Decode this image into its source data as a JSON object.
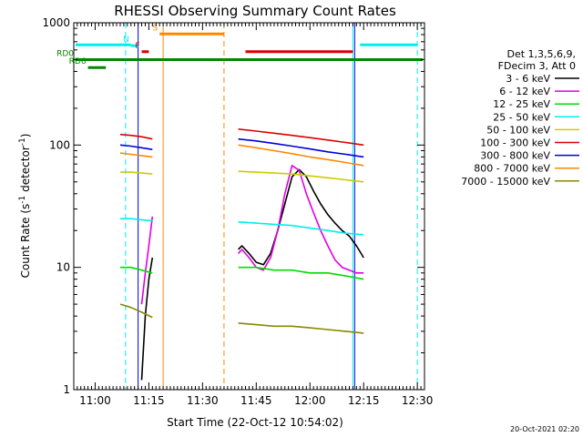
{
  "chart_data": {
    "type": "line",
    "title": "RHESSI Observing Summary Count Rates",
    "xlabel": "Start Time (22-Oct-12 10:54:02)",
    "ylabel_parts": [
      "Count Rate (s",
      "-1",
      " detector",
      "-1",
      ")"
    ],
    "y_scale": "log",
    "ylim": [
      1,
      1000
    ],
    "y_ticks": [
      {
        "value": 1,
        "label": "1"
      },
      {
        "value": 10,
        "label": "10"
      },
      {
        "value": 100,
        "label": "100"
      },
      {
        "value": 1000,
        "label": "1000"
      }
    ],
    "xlim": [
      "10:54:02",
      "12:32"
    ],
    "x_ticks": [
      "11:00",
      "11:15",
      "11:30",
      "11:45",
      "12:00",
      "12:15",
      "12:30"
    ],
    "legend": {
      "position": "right",
      "header": [
        "Det 1,3,5,6,9,",
        "FDecim 3, Att 0"
      ]
    },
    "series": [
      {
        "name": "3 - 6 keV",
        "color": "#000000",
        "segments": [
          [
            [
              "11:13",
              1.2
            ],
            [
              "11:14",
              4.0
            ],
            [
              "11:15",
              8.0
            ],
            [
              "11:16",
              12.0
            ]
          ],
          [
            [
              "11:40",
              14
            ],
            [
              "11:41",
              15
            ],
            [
              "11:43",
              13
            ],
            [
              "11:45",
              11
            ],
            [
              "11:47",
              10.5
            ],
            [
              "11:49",
              13
            ],
            [
              "11:51",
              20
            ],
            [
              "11:53",
              33
            ],
            [
              "11:55",
              55
            ],
            [
              "11:57",
              63
            ],
            [
              "11:59",
              55
            ],
            [
              "12:01",
              42
            ],
            [
              "12:03",
              33
            ],
            [
              "12:05",
              27
            ],
            [
              "12:07",
              23
            ],
            [
              "12:09",
              20
            ],
            [
              "12:11",
              18
            ],
            [
              "12:13",
              15
            ],
            [
              "12:15",
              12
            ]
          ]
        ]
      },
      {
        "name": "6 - 12 keV",
        "color": "#e000e0",
        "segments": [
          [
            [
              "11:13",
              5.0
            ],
            [
              "11:14",
              9.0
            ],
            [
              "11:15",
              15.0
            ],
            [
              "11:16",
              26.0
            ]
          ],
          [
            [
              "11:40",
              13
            ],
            [
              "11:41",
              14
            ],
            [
              "11:43",
              12
            ],
            [
              "11:45",
              10
            ],
            [
              "11:47",
              9.5
            ],
            [
              "11:49",
              12
            ],
            [
              "11:51",
              20
            ],
            [
              "11:53",
              40
            ],
            [
              "11:55",
              68
            ],
            [
              "11:57",
              62
            ],
            [
              "11:59",
              40
            ],
            [
              "12:01",
              28
            ],
            [
              "12:03",
              20
            ],
            [
              "12:05",
              15
            ],
            [
              "12:07",
              11.5
            ],
            [
              "12:09",
              10
            ],
            [
              "12:11",
              9.5
            ],
            [
              "12:13",
              9
            ],
            [
              "12:15",
              9
            ]
          ]
        ]
      },
      {
        "name": "12 - 25 keV",
        "color": "#00dd00",
        "segments": [
          [
            [
              "11:07",
              10
            ],
            [
              "11:10",
              10
            ],
            [
              "11:13",
              9.5
            ],
            [
              "11:16",
              9
            ]
          ],
          [
            [
              "11:40",
              10
            ],
            [
              "11:45",
              10
            ],
            [
              "11:50",
              9.5
            ],
            [
              "11:55",
              9.5
            ],
            [
              "12:00",
              9
            ],
            [
              "12:05",
              9
            ],
            [
              "12:10",
              8.5
            ],
            [
              "12:15",
              8
            ]
          ]
        ]
      },
      {
        "name": "25 - 50 keV",
        "color": "#00eeee",
        "segments": [
          [
            [
              "11:07",
              25
            ],
            [
              "11:10",
              25
            ],
            [
              "11:13",
              24.5
            ],
            [
              "11:16",
              24
            ]
          ],
          [
            [
              "11:40",
              23.5
            ],
            [
              "11:45",
              23
            ],
            [
              "11:50",
              22.5
            ],
            [
              "11:55",
              22
            ],
            [
              "12:00",
              21
            ],
            [
              "12:05",
              20
            ],
            [
              "12:10",
              19
            ],
            [
              "12:15",
              18.5
            ]
          ]
        ]
      },
      {
        "name": "50 - 100 keV",
        "color": "#cccc00",
        "segments": [
          [
            [
              "11:07",
              60
            ],
            [
              "11:10",
              60
            ],
            [
              "11:13",
              59
            ],
            [
              "11:16",
              58
            ]
          ],
          [
            [
              "11:40",
              61
            ],
            [
              "11:45",
              60
            ],
            [
              "11:50",
              59
            ],
            [
              "11:55",
              58
            ],
            [
              "12:00",
              56
            ],
            [
              "12:05",
              54
            ],
            [
              "12:10",
              52
            ],
            [
              "12:15",
              50
            ]
          ]
        ]
      },
      {
        "name": "100 - 300 keV",
        "color": "#dd0000",
        "segments": [
          [
            [
              "11:07",
              122
            ],
            [
              "11:10",
              120
            ],
            [
              "11:13",
              117
            ],
            [
              "11:16",
              112
            ]
          ],
          [
            [
              "11:40",
              135
            ],
            [
              "11:45",
              130
            ],
            [
              "11:50",
              125
            ],
            [
              "11:55",
              120
            ],
            [
              "12:00",
              115
            ],
            [
              "12:05",
              110
            ],
            [
              "12:10",
              105
            ],
            [
              "12:15",
              100
            ]
          ]
        ]
      },
      {
        "name": "300 - 800 keV",
        "color": "#0000dd",
        "segments": [
          [
            [
              "11:07",
              100
            ],
            [
              "11:10",
              98
            ],
            [
              "11:13",
              95
            ],
            [
              "11:16",
              92
            ]
          ],
          [
            [
              "11:40",
              112
            ],
            [
              "11:45",
              108
            ],
            [
              "11:50",
              103
            ],
            [
              "11:55",
              98
            ],
            [
              "12:00",
              93
            ],
            [
              "12:05",
              88
            ],
            [
              "12:10",
              84
            ],
            [
              "12:15",
              80
            ]
          ]
        ]
      },
      {
        "name": "800 - 7000 keV",
        "color": "#ff8800",
        "segments": [
          [
            [
              "11:07",
              86
            ],
            [
              "11:10",
              84
            ],
            [
              "11:13",
              82
            ],
            [
              "11:16",
              80
            ]
          ],
          [
            [
              "11:40",
              100
            ],
            [
              "11:45",
              95
            ],
            [
              "11:50",
              90
            ],
            [
              "11:55",
              85
            ],
            [
              "12:00",
              80
            ],
            [
              "12:05",
              76
            ],
            [
              "12:10",
              72
            ],
            [
              "12:15",
              68
            ]
          ]
        ]
      },
      {
        "name": "7000 - 15000 keV",
        "color": "#888800",
        "segments": [
          [
            [
              "11:07",
              5
            ],
            [
              "11:10",
              4.7
            ],
            [
              "11:13",
              4.3
            ],
            [
              "11:16",
              3.9
            ]
          ],
          [
            [
              "11:40",
              3.5
            ],
            [
              "11:45",
              3.4
            ],
            [
              "11:50",
              3.3
            ],
            [
              "11:55",
              3.3
            ],
            [
              "12:00",
              3.2
            ],
            [
              "12:05",
              3.1
            ],
            [
              "12:10",
              3.0
            ],
            [
              "12:15",
              2.9
            ]
          ]
        ]
      }
    ],
    "flag_bars": [
      {
        "label": "",
        "color": "#00eeee",
        "start": "10:54:02",
        "end": "11:10",
        "level": 660
      },
      {
        "label": "N",
        "color": "#00eeee",
        "start": "11:10",
        "end": "11:12",
        "level": 650
      },
      {
        "label": "",
        "color": "#00eeee",
        "start": "12:14",
        "end": "12:30",
        "level": 660
      },
      {
        "label": "F",
        "color": "#dd0000",
        "start": "11:13",
        "end": "11:15",
        "level": 580
      },
      {
        "label": "S",
        "color": "#ff8800",
        "start": "11:18",
        "end": "11:36",
        "level": 810
      },
      {
        "label": "",
        "color": "#dd0000",
        "start": "11:42",
        "end": "12:12",
        "level": 580
      },
      {
        "label": "RD0",
        "color": "#008800",
        "start": "10:54:02",
        "end": "12:32",
        "level": 500
      },
      {
        "label": "RD6",
        "color": "#008800",
        "start": "10:58",
        "end": "11:03",
        "level": 430
      }
    ],
    "vertical_lines": [
      {
        "time": "11:08:30",
        "color": "#00eeee",
        "style": "dashed"
      },
      {
        "time": "11:12",
        "color": "#0000dd",
        "style": "solid"
      },
      {
        "time": "11:19",
        "color": "#ff8800",
        "style": "solid"
      },
      {
        "time": "11:36",
        "color": "#ff8800",
        "style": "dashed"
      },
      {
        "time": "12:12",
        "color": "#00eeee",
        "style": "solid"
      },
      {
        "time": "12:12:30",
        "color": "#0000dd",
        "style": "solid"
      },
      {
        "time": "12:30",
        "color": "#00eeee",
        "style": "dashed"
      }
    ],
    "footer_date": "20-Oct-2021 02:20"
  }
}
